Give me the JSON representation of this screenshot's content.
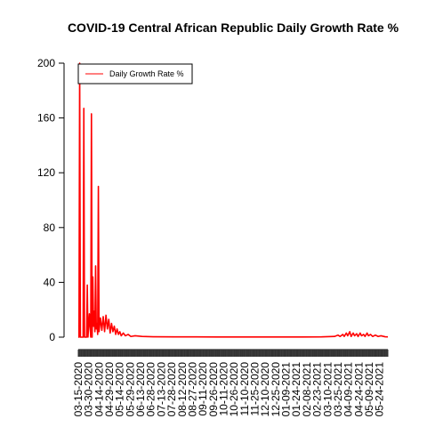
{
  "chart_data": {
    "type": "line",
    "title": "COVID-19 Central African Republic Daily Growth Rate %",
    "xlabel": "",
    "ylabel": "",
    "ylim": [
      0,
      200
    ],
    "y_ticks": [
      0,
      40,
      80,
      120,
      160,
      200
    ],
    "x_start": "03-15-2020",
    "x_end": "06-05-2021",
    "x_tick_labels": [
      "03-15-2020",
      "03-30-2020",
      "04-14-2020",
      "04-29-2020",
      "05-14-2020",
      "05-29-2020",
      "06-13-2020",
      "06-28-2020",
      "07-13-2020",
      "07-28-2020",
      "08-12-2020",
      "08-27-2020",
      "09-11-2020",
      "09-26-2020",
      "10-11-2020",
      "10-26-2020",
      "11-10-2020",
      "11-25-2020",
      "12-10-2020",
      "12-25-2020",
      "01-09-2021",
      "01-24-2021",
      "02-08-2021",
      "02-23-2021",
      "03-10-2021",
      "03-25-2021",
      "04-09-2021",
      "04-24-2021",
      "05-09-2021",
      "05-24-2021"
    ],
    "legend": {
      "position": "top-left"
    },
    "series": [
      {
        "name": "Daily Growth Rate %",
        "color": "#ff0000",
        "points": [
          [
            "03-15-2020",
            0
          ],
          [
            "03-16-2020",
            0
          ],
          [
            "03-17-2020",
            200
          ],
          [
            "03-18-2020",
            0
          ],
          [
            "03-22-2020",
            0
          ],
          [
            "03-23-2020",
            167
          ],
          [
            "03-24-2020",
            0
          ],
          [
            "03-27-2020",
            0
          ],
          [
            "03-28-2020",
            38
          ],
          [
            "03-29-2020",
            0
          ],
          [
            "03-31-2020",
            17
          ],
          [
            "04-01-2020",
            8
          ],
          [
            "04-02-2020",
            0
          ],
          [
            "04-03-2020",
            163
          ],
          [
            "04-04-2020",
            0
          ],
          [
            "04-05-2020",
            44
          ],
          [
            "04-06-2020",
            8
          ],
          [
            "04-07-2020",
            19
          ],
          [
            "04-08-2020",
            4
          ],
          [
            "04-09-2020",
            52
          ],
          [
            "04-10-2020",
            6
          ],
          [
            "04-11-2020",
            10
          ],
          [
            "04-12-2020",
            2
          ],
          [
            "04-13-2020",
            110
          ],
          [
            "04-14-2020",
            4
          ],
          [
            "04-16-2020",
            14
          ],
          [
            "04-18-2020",
            5
          ],
          [
            "04-20-2020",
            15
          ],
          [
            "04-22-2020",
            4
          ],
          [
            "04-24-2020",
            16
          ],
          [
            "04-26-2020",
            6
          ],
          [
            "04-28-2020",
            13
          ],
          [
            "04-30-2020",
            3
          ],
          [
            "05-02-2020",
            10
          ],
          [
            "05-04-2020",
            4
          ],
          [
            "05-06-2020",
            8
          ],
          [
            "05-08-2020",
            2
          ],
          [
            "05-10-2020",
            6
          ],
          [
            "05-12-2020",
            2
          ],
          [
            "05-14-2020",
            4
          ],
          [
            "05-16-2020",
            1
          ],
          [
            "05-19-2020",
            3
          ],
          [
            "05-22-2020",
            1
          ],
          [
            "05-26-2020",
            2
          ],
          [
            "05-30-2020",
            0.5
          ],
          [
            "06-05-2020",
            1
          ],
          [
            "06-15-2020",
            0.5
          ],
          [
            "07-01-2020",
            0.3
          ],
          [
            "08-01-2020",
            0.2
          ],
          [
            "09-01-2020",
            0.2
          ],
          [
            "10-01-2020",
            0.1
          ],
          [
            "11-01-2020",
            0.1
          ],
          [
            "12-01-2020",
            0.1
          ],
          [
            "01-01-2021",
            0.1
          ],
          [
            "02-01-2021",
            0.1
          ],
          [
            "03-01-2021",
            0.2
          ],
          [
            "03-20-2021",
            0.5
          ],
          [
            "03-25-2021",
            1.5
          ],
          [
            "03-28-2021",
            0.5
          ],
          [
            "04-01-2021",
            2
          ],
          [
            "04-03-2021",
            0.5
          ],
          [
            "04-06-2021",
            3
          ],
          [
            "04-08-2021",
            1
          ],
          [
            "04-11-2021",
            4
          ],
          [
            "04-13-2021",
            0.5
          ],
          [
            "04-16-2021",
            3
          ],
          [
            "04-18-2021",
            1
          ],
          [
            "04-21-2021",
            2.5
          ],
          [
            "04-23-2021",
            0.5
          ],
          [
            "04-26-2021",
            3
          ],
          [
            "04-28-2021",
            1
          ],
          [
            "05-01-2021",
            2
          ],
          [
            "05-03-2021",
            0.5
          ],
          [
            "05-06-2021",
            3
          ],
          [
            "05-08-2021",
            1
          ],
          [
            "05-11-2021",
            2
          ],
          [
            "05-14-2021",
            0.5
          ],
          [
            "05-18-2021",
            1.5
          ],
          [
            "05-22-2021",
            0.5
          ],
          [
            "05-26-2021",
            1
          ],
          [
            "06-01-2021",
            0.3
          ],
          [
            "06-05-2021",
            0.2
          ]
        ]
      }
    ]
  }
}
